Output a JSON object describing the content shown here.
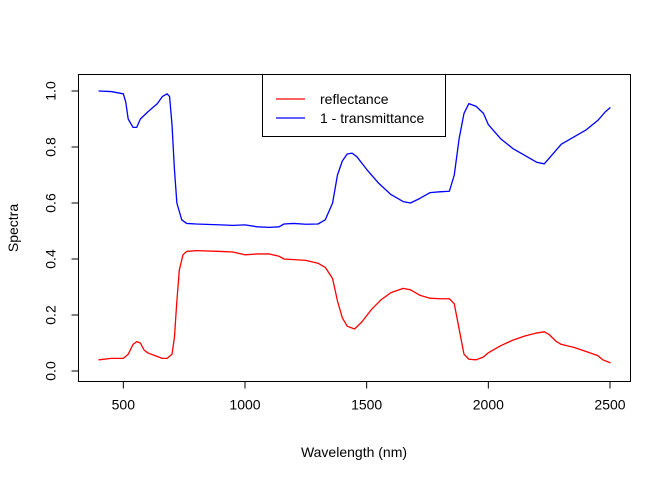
{
  "chart_data": {
    "type": "line",
    "title": "",
    "xlabel": "Wavelength (nm)",
    "ylabel": "Spectra",
    "xlim": [
      400,
      2500
    ],
    "ylim": [
      0,
      1.0
    ],
    "x_ticks": [
      500,
      1000,
      1500,
      2000,
      2500
    ],
    "x_tick_labels": [
      "500",
      "1000",
      "1500",
      "2000",
      "2500"
    ],
    "y_ticks": [
      0.0,
      0.2,
      0.4,
      0.6,
      0.8,
      1.0
    ],
    "y_tick_labels": [
      "0.0",
      "0.2",
      "0.4",
      "0.6",
      "0.8",
      "1.0"
    ],
    "grid": false,
    "legend_position": "top-center",
    "series": [
      {
        "name": "reflectance",
        "color": "#ff0000",
        "points": [
          [
            400,
            0.04
          ],
          [
            450,
            0.045
          ],
          [
            500,
            0.045
          ],
          [
            520,
            0.06
          ],
          [
            540,
            0.095
          ],
          [
            555,
            0.105
          ],
          [
            570,
            0.1
          ],
          [
            585,
            0.075
          ],
          [
            600,
            0.065
          ],
          [
            630,
            0.055
          ],
          [
            660,
            0.045
          ],
          [
            680,
            0.045
          ],
          [
            700,
            0.06
          ],
          [
            710,
            0.12
          ],
          [
            720,
            0.25
          ],
          [
            730,
            0.36
          ],
          [
            745,
            0.415
          ],
          [
            760,
            0.427
          ],
          [
            800,
            0.43
          ],
          [
            900,
            0.427
          ],
          [
            950,
            0.425
          ],
          [
            1000,
            0.415
          ],
          [
            1050,
            0.418
          ],
          [
            1100,
            0.418
          ],
          [
            1140,
            0.41
          ],
          [
            1160,
            0.4
          ],
          [
            1250,
            0.395
          ],
          [
            1300,
            0.385
          ],
          [
            1330,
            0.37
          ],
          [
            1360,
            0.33
          ],
          [
            1380,
            0.25
          ],
          [
            1400,
            0.19
          ],
          [
            1420,
            0.16
          ],
          [
            1450,
            0.15
          ],
          [
            1480,
            0.175
          ],
          [
            1520,
            0.22
          ],
          [
            1560,
            0.255
          ],
          [
            1600,
            0.28
          ],
          [
            1650,
            0.295
          ],
          [
            1680,
            0.29
          ],
          [
            1720,
            0.27
          ],
          [
            1760,
            0.26
          ],
          [
            1800,
            0.258
          ],
          [
            1840,
            0.258
          ],
          [
            1860,
            0.24
          ],
          [
            1880,
            0.15
          ],
          [
            1900,
            0.06
          ],
          [
            1920,
            0.042
          ],
          [
            1950,
            0.04
          ],
          [
            1980,
            0.05
          ],
          [
            2000,
            0.065
          ],
          [
            2050,
            0.09
          ],
          [
            2100,
            0.11
          ],
          [
            2150,
            0.125
          ],
          [
            2200,
            0.136
          ],
          [
            2230,
            0.14
          ],
          [
            2250,
            0.13
          ],
          [
            2280,
            0.105
          ],
          [
            2300,
            0.095
          ],
          [
            2350,
            0.085
          ],
          [
            2400,
            0.07
          ],
          [
            2450,
            0.055
          ],
          [
            2470,
            0.04
          ],
          [
            2500,
            0.03
          ]
        ]
      },
      {
        "name": "1 - transmittance",
        "color": "#0000ff",
        "points": [
          [
            400,
            1.0
          ],
          [
            450,
            0.998
          ],
          [
            500,
            0.99
          ],
          [
            510,
            0.96
          ],
          [
            520,
            0.9
          ],
          [
            540,
            0.87
          ],
          [
            555,
            0.87
          ],
          [
            570,
            0.9
          ],
          [
            600,
            0.925
          ],
          [
            620,
            0.94
          ],
          [
            640,
            0.955
          ],
          [
            660,
            0.98
          ],
          [
            680,
            0.99
          ],
          [
            690,
            0.98
          ],
          [
            700,
            0.88
          ],
          [
            710,
            0.72
          ],
          [
            720,
            0.6
          ],
          [
            740,
            0.54
          ],
          [
            760,
            0.527
          ],
          [
            800,
            0.525
          ],
          [
            900,
            0.522
          ],
          [
            950,
            0.52
          ],
          [
            1000,
            0.522
          ],
          [
            1050,
            0.515
          ],
          [
            1100,
            0.513
          ],
          [
            1140,
            0.515
          ],
          [
            1160,
            0.525
          ],
          [
            1200,
            0.527
          ],
          [
            1250,
            0.524
          ],
          [
            1300,
            0.525
          ],
          [
            1330,
            0.54
          ],
          [
            1360,
            0.6
          ],
          [
            1380,
            0.7
          ],
          [
            1400,
            0.75
          ],
          [
            1420,
            0.775
          ],
          [
            1440,
            0.778
          ],
          [
            1460,
            0.765
          ],
          [
            1500,
            0.72
          ],
          [
            1550,
            0.67
          ],
          [
            1600,
            0.63
          ],
          [
            1650,
            0.605
          ],
          [
            1680,
            0.6
          ],
          [
            1720,
            0.617
          ],
          [
            1760,
            0.637
          ],
          [
            1800,
            0.64
          ],
          [
            1840,
            0.642
          ],
          [
            1860,
            0.7
          ],
          [
            1880,
            0.83
          ],
          [
            1900,
            0.92
          ],
          [
            1920,
            0.955
          ],
          [
            1950,
            0.945
          ],
          [
            1980,
            0.92
          ],
          [
            2000,
            0.88
          ],
          [
            2050,
            0.83
          ],
          [
            2100,
            0.795
          ],
          [
            2150,
            0.77
          ],
          [
            2200,
            0.745
          ],
          [
            2230,
            0.74
          ],
          [
            2260,
            0.77
          ],
          [
            2300,
            0.81
          ],
          [
            2350,
            0.835
          ],
          [
            2400,
            0.86
          ],
          [
            2450,
            0.895
          ],
          [
            2480,
            0.925
          ],
          [
            2500,
            0.94
          ]
        ]
      }
    ]
  }
}
